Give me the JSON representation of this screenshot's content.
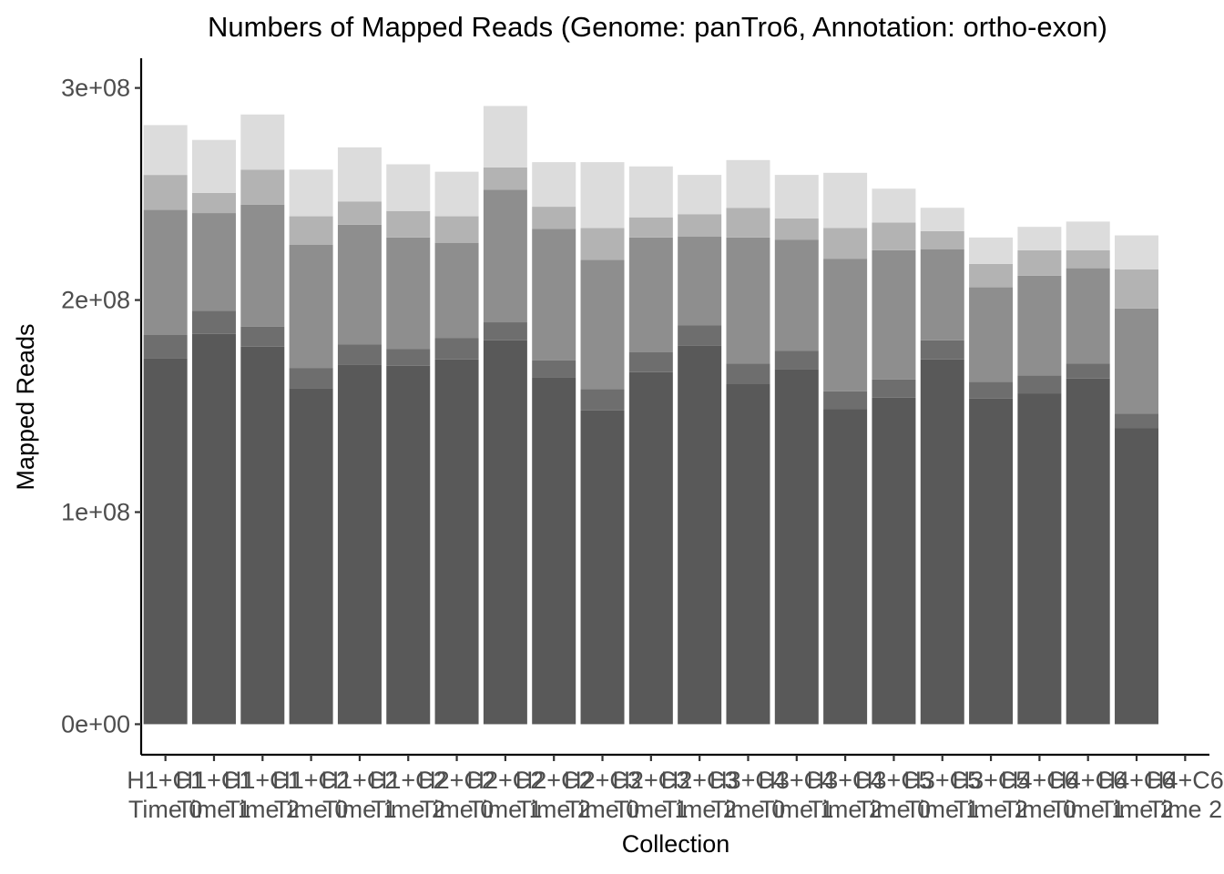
{
  "chart_data": {
    "type": "bar",
    "stacked": true,
    "title": "Numbers of Mapped Reads (Genome: panTro6, Annotation: ortho-exon)",
    "xlabel": "Collection",
    "ylabel": "Mapped Reads",
    "ylim": [
      -14400000,
      314000000
    ],
    "yticks": [
      0,
      100000000,
      200000000,
      300000000
    ],
    "ytick_labels": [
      "0e+00",
      "1e+08",
      "2e+08",
      "3e+08"
    ],
    "grid": false,
    "legend": "none",
    "categories": [
      [
        "H1+C1",
        "Time 0"
      ],
      [
        "H1+C1",
        "Time 1"
      ],
      [
        "H1+C1",
        "Time 2"
      ],
      [
        "H1+C2",
        "Time 0"
      ],
      [
        "H1+C2",
        "Time 1"
      ],
      [
        "H1+C2",
        "Time 2"
      ],
      [
        "H2+C2",
        "Time 0"
      ],
      [
        "H2+C2",
        "Time 1"
      ],
      [
        "H2+C2",
        "Time 2"
      ],
      [
        "H2+C3",
        "Time 0"
      ],
      [
        "H2+C3",
        "Time 1"
      ],
      [
        "H2+C3",
        "Time 2"
      ],
      [
        "H3+C4",
        "Time 0"
      ],
      [
        "H3+C4",
        "Time 1"
      ],
      [
        "H3+C4",
        "Time 2"
      ],
      [
        "H3+C5",
        "Time 0"
      ],
      [
        "H3+C5",
        "Time 1"
      ],
      [
        "H3+C5",
        "Time 2"
      ],
      [
        "H4+C6",
        "Time 0"
      ],
      [
        "H4+C6",
        "Time 1"
      ],
      [
        "H4+C6",
        "Time 2"
      ],
      [
        "H4+C6",
        "Time 2"
      ]
    ],
    "series": [
      {
        "color": "#595959",
        "values": [
          172500000,
          184000000,
          178000000,
          158500000,
          169500000,
          169000000,
          172000000,
          181000000,
          163500000,
          148000000,
          166000000,
          178500000,
          160500000,
          167500000,
          148500000,
          154000000,
          172000000,
          153500000,
          156000000,
          163000000,
          139500000,
          0
        ]
      },
      {
        "color": "#6e6e6e",
        "values": [
          11000000,
          11000000,
          9500000,
          9500000,
          9500000,
          8000000,
          10000000,
          8500000,
          8000000,
          10000000,
          9500000,
          9500000,
          9500000,
          8500000,
          8500000,
          8500000,
          9000000,
          8000000,
          8500000,
          7000000,
          7000000,
          0
        ]
      },
      {
        "color": "#8e8e8e",
        "values": [
          59000000,
          46000000,
          57500000,
          58000000,
          56500000,
          52500000,
          45000000,
          62500000,
          62000000,
          61000000,
          54000000,
          42000000,
          59500000,
          52500000,
          62500000,
          61000000,
          43000000,
          44500000,
          47000000,
          45000000,
          49500000,
          0
        ]
      },
      {
        "color": "#b3b3b3",
        "values": [
          16500000,
          9500000,
          16500000,
          13500000,
          11000000,
          12500000,
          12500000,
          10500000,
          10500000,
          15000000,
          9500000,
          10500000,
          14000000,
          10000000,
          14500000,
          13000000,
          8500000,
          11000000,
          12000000,
          8500000,
          18500000,
          0
        ]
      },
      {
        "color": "#dcdcdc",
        "values": [
          23500000,
          25000000,
          26000000,
          22000000,
          25500000,
          22000000,
          21000000,
          29000000,
          21000000,
          31000000,
          24000000,
          18500000,
          22500000,
          20500000,
          26000000,
          16000000,
          11000000,
          12500000,
          11000000,
          13500000,
          16000000,
          0
        ]
      }
    ]
  }
}
